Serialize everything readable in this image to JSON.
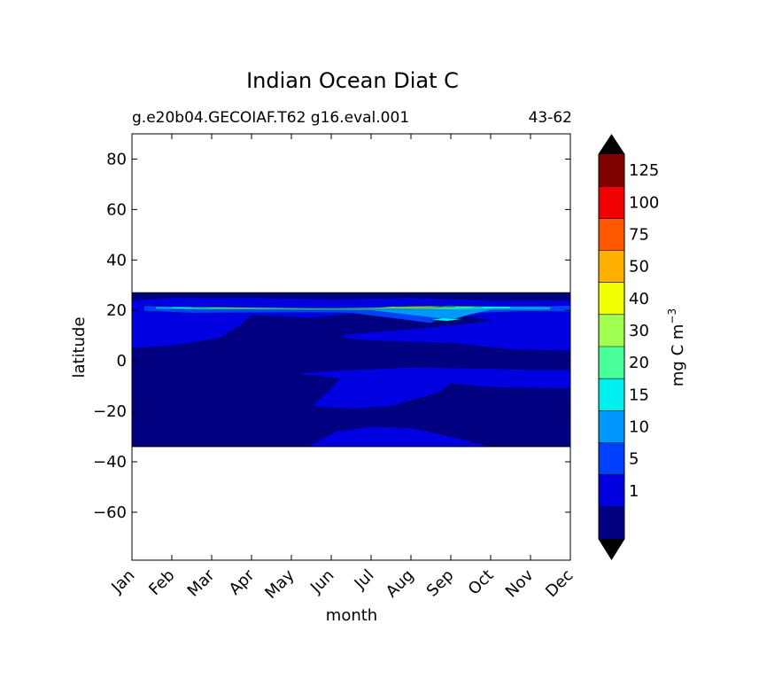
{
  "chart_data": {
    "type": "contourf",
    "title": "Indian Ocean Diat C",
    "subtitle_left": "g.e20b04.GECOIAF.T62 g16.eval.001",
    "subtitle_right": "43-62",
    "xlabel": "month",
    "ylabel": "latitude",
    "x_tick_labels": [
      "Jan",
      "Feb",
      "Mar",
      "Apr",
      "May",
      "Jun",
      "Jul",
      "Aug",
      "Sep",
      "Oct",
      "Nov",
      "Dec"
    ],
    "xlim": [
      0,
      11
    ],
    "ylim": [
      -79,
      90
    ],
    "y_ticks": [
      80,
      60,
      40,
      20,
      0,
      -20,
      -40,
      -60
    ],
    "y_tick_labels": [
      "80",
      "60",
      "40",
      "20",
      "0",
      "−20",
      "−40",
      "−60"
    ],
    "data_lat_range": [
      -34,
      27
    ],
    "colorbar": {
      "label": "mg C m",
      "label_exponent": "−3",
      "levels": [
        1,
        5,
        10,
        15,
        20,
        30,
        40,
        50,
        75,
        100,
        125
      ],
      "tick_labels": [
        "1",
        "5",
        "10",
        "15",
        "20",
        "30",
        "40",
        "50",
        "75",
        "100",
        "125"
      ],
      "colors": [
        "#000080",
        "#0000e0",
        "#0040ff",
        "#0098ff",
        "#00f0f0",
        "#48ff98",
        "#a0ff50",
        "#f0ff00",
        "#ffb000",
        "#ff5800",
        "#f00000",
        "#800000"
      ],
      "under_color": "#000000",
      "over_color": "#000000",
      "extend": "both"
    },
    "regions": [
      {
        "name": "background",
        "level_index": 0,
        "points": [
          [
            0,
            27
          ],
          [
            11,
            27
          ],
          [
            11,
            -34
          ],
          [
            0,
            -34
          ]
        ]
      },
      {
        "name": "north-band",
        "level_index": 1,
        "points": [
          [
            0,
            24
          ],
          [
            1,
            25
          ],
          [
            3,
            25
          ],
          [
            5,
            24.5
          ],
          [
            7,
            25
          ],
          [
            9,
            24
          ],
          [
            11,
            24
          ],
          [
            11,
            4
          ],
          [
            9.5,
            4.5
          ],
          [
            8,
            7
          ],
          [
            6,
            8
          ],
          [
            5.3,
            9
          ],
          [
            5.3,
            10.5
          ],
          [
            6.5,
            12
          ],
          [
            8,
            14
          ],
          [
            9,
            16
          ],
          [
            8.5,
            17.5
          ],
          [
            7,
            18
          ],
          [
            5.5,
            18.5
          ],
          [
            4.5,
            17
          ],
          [
            3,
            18
          ],
          [
            2.7,
            14
          ],
          [
            2.2,
            9
          ],
          [
            1,
            6
          ],
          [
            0,
            5
          ]
        ]
      },
      {
        "name": "central-band",
        "level_index": 1,
        "points": [
          [
            4.1,
            -5
          ],
          [
            5,
            -4
          ],
          [
            7,
            -2.5
          ],
          [
            9,
            -3
          ],
          [
            10,
            -3.5
          ],
          [
            11,
            -3.5
          ],
          [
            11,
            -11
          ],
          [
            9,
            -10.5
          ],
          [
            8,
            -9
          ],
          [
            7.7,
            -12.5
          ],
          [
            6.5,
            -18
          ],
          [
            5.5,
            -19
          ],
          [
            4.5,
            -18
          ],
          [
            5,
            -11
          ],
          [
            5.2,
            -7
          ]
        ]
      },
      {
        "name": "south-band",
        "level_index": 1,
        "points": [
          [
            4.4,
            -34
          ],
          [
            5.1,
            -28
          ],
          [
            6,
            -26
          ],
          [
            7,
            -26.5
          ],
          [
            8,
            -30
          ],
          [
            9,
            -34
          ]
        ]
      },
      {
        "name": "strip-5",
        "level_index": 2,
        "points": [
          [
            0.3,
            21.8
          ],
          [
            1.5,
            21.3
          ],
          [
            3,
            21.1
          ],
          [
            4.5,
            20.9
          ],
          [
            6,
            21
          ],
          [
            7,
            21.5
          ],
          [
            8,
            22
          ],
          [
            9,
            21.6
          ],
          [
            10,
            21.7
          ],
          [
            11,
            21.9
          ],
          [
            11,
            19.5
          ],
          [
            10,
            19.7
          ],
          [
            9,
            19.2
          ],
          [
            8,
            18.6
          ],
          [
            7.5,
            15
          ],
          [
            6.5,
            17
          ],
          [
            5.5,
            19
          ],
          [
            4.5,
            19.2
          ],
          [
            3,
            19.1
          ],
          [
            1.5,
            19
          ],
          [
            0.3,
            19.8
          ]
        ]
      },
      {
        "name": "strip-10",
        "level_index": 3,
        "points": [
          [
            0.6,
            21.6
          ],
          [
            2,
            21
          ],
          [
            3.5,
            20.8
          ],
          [
            5,
            20.6
          ],
          [
            6.5,
            21
          ],
          [
            7.5,
            21.6
          ],
          [
            8.5,
            21.7
          ],
          [
            10.5,
            21.5
          ],
          [
            10.5,
            20.2
          ],
          [
            9,
            20.1
          ],
          [
            8.5,
            18.4
          ],
          [
            8,
            16.2
          ],
          [
            7.4,
            17.4
          ],
          [
            6,
            20
          ],
          [
            4,
            20.1
          ],
          [
            2,
            20.2
          ],
          [
            0.6,
            20.5
          ]
        ]
      },
      {
        "name": "strip-15",
        "level_index": 4,
        "points": [
          [
            1,
            21.4
          ],
          [
            3,
            21.1
          ],
          [
            5,
            20.9
          ],
          [
            6.5,
            21.2
          ],
          [
            8,
            21.7
          ],
          [
            9.5,
            21.5
          ],
          [
            9.5,
            20.7
          ],
          [
            8,
            20.3
          ],
          [
            6,
            20.5
          ],
          [
            4,
            20.4
          ],
          [
            2,
            20.5
          ],
          [
            1,
            20.8
          ]
        ]
      },
      {
        "name": "spot-15",
        "level_index": 4,
        "points": [
          [
            7.8,
            17
          ],
          [
            8.3,
            16.6
          ],
          [
            7.9,
            15.8
          ],
          [
            7.5,
            16.3
          ]
        ]
      },
      {
        "name": "strip-20",
        "level_index": 5,
        "points": [
          [
            1.5,
            21.3
          ],
          [
            3,
            21.1
          ],
          [
            4.5,
            20.9
          ],
          [
            6,
            21
          ],
          [
            7.2,
            21.4
          ],
          [
            8.5,
            21.6
          ],
          [
            8.8,
            21.1
          ],
          [
            7.5,
            20.8
          ],
          [
            6,
            20.6
          ],
          [
            4,
            20.6
          ],
          [
            2,
            20.7
          ]
        ]
      },
      {
        "name": "peak-30",
        "level_index": 6,
        "points": [
          [
            6.2,
            21.3
          ],
          [
            6.8,
            21.6
          ],
          [
            7.5,
            21.7
          ],
          [
            8.1,
            21.4
          ],
          [
            7.4,
            21
          ],
          [
            6.6,
            21
          ]
        ]
      },
      {
        "name": "peak-40",
        "level_index": 7,
        "points": [
          [
            6.6,
            21.4
          ],
          [
            7.2,
            21.55
          ],
          [
            7.8,
            21.45
          ],
          [
            7.2,
            21.2
          ]
        ]
      }
    ]
  }
}
